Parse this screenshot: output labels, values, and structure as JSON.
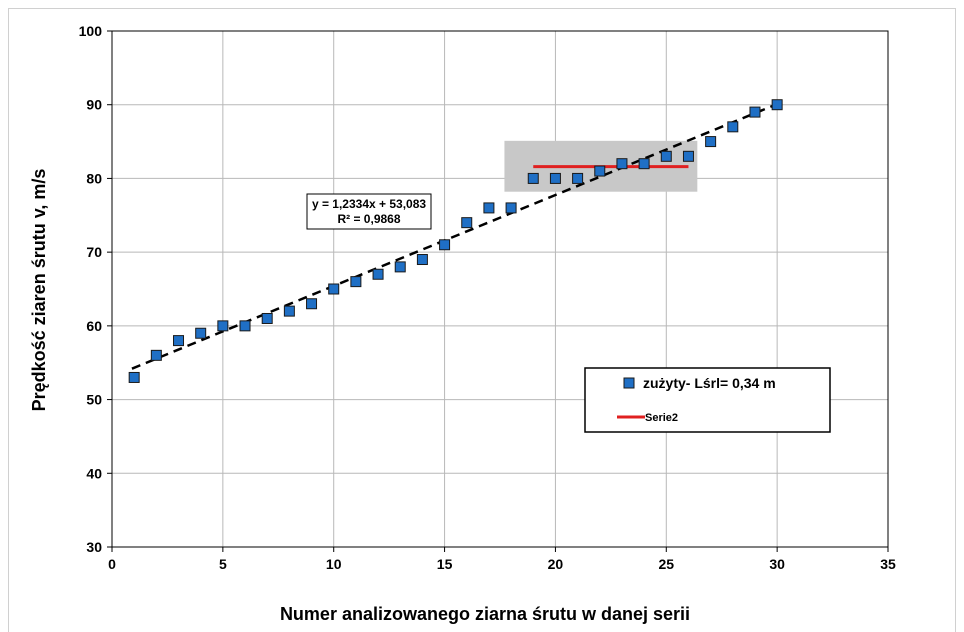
{
  "chart_data": {
    "type": "scatter",
    "title": "",
    "xlabel": "Numer analizowanego ziarna śrutu w danej serii",
    "ylabel": "Prędkość ziaren śrutu v, m/s",
    "xlim": [
      0,
      35
    ],
    "ylim": [
      30,
      100
    ],
    "xticks": [
      0,
      5,
      10,
      15,
      20,
      25,
      30,
      35
    ],
    "yticks": [
      30,
      40,
      50,
      60,
      70,
      80,
      90,
      100
    ],
    "xtick_labels": [
      "0",
      "5",
      "10",
      "15",
      "20",
      "25",
      "30",
      "35"
    ],
    "ytick_labels": [
      "30",
      "40",
      "50",
      "60",
      "70",
      "80",
      "90",
      "100"
    ],
    "grid": true,
    "legend_position": "bottom-right",
    "series": [
      {
        "name": "zużyty- Lśrl= 0,34 m",
        "kind": "scatter",
        "marker": "square",
        "color": "#1f6fc5",
        "x": [
          1,
          2,
          3,
          4,
          5,
          6,
          7,
          8,
          9,
          10,
          11,
          12,
          13,
          14,
          15,
          16,
          17,
          18,
          19,
          20,
          21,
          22,
          23,
          24,
          25,
          26,
          27,
          28,
          29,
          30
        ],
        "y": [
          53,
          56,
          58,
          59,
          60,
          60,
          61,
          62,
          63,
          65,
          66,
          67,
          68,
          69,
          71,
          74,
          76,
          76,
          80,
          80,
          80,
          81,
          82,
          82,
          83,
          83,
          85,
          87,
          89,
          90
        ]
      },
      {
        "name": "Serie2",
        "kind": "line",
        "color": "#e02020",
        "x": [
          19,
          26
        ],
        "y": [
          81.6,
          81.6
        ]
      }
    ],
    "trendline": {
      "slope": 1.2334,
      "intercept": 53.083,
      "x_range": [
        1,
        30
      ],
      "style": "dashed",
      "color": "#000000",
      "equation_text": "y = 1,2334x + 53,083",
      "r2_text": "R² = 0,9868"
    },
    "highlight_region": {
      "x": [
        17.7,
        26.4
      ],
      "y": [
        78.2,
        85.1
      ],
      "color": "#c8c8c8"
    }
  }
}
